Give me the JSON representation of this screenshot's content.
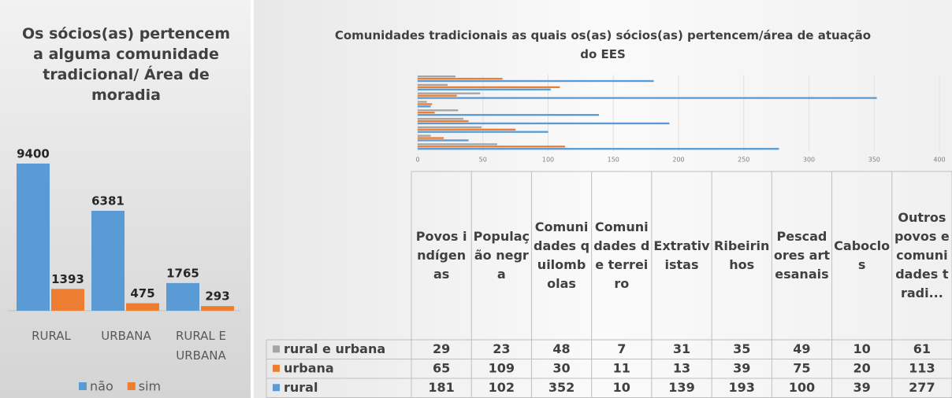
{
  "chart_data": [
    {
      "type": "bar",
      "title": "Os sócios(as) pertencem a alguma comunidade tradicional/ Área de moradia",
      "categories": [
        "RURAL",
        "URBANA",
        "RURAL E URBANA"
      ],
      "series": [
        {
          "name": "não",
          "color": "#5b9bd5",
          "values": [
            9400,
            6381,
            1765
          ]
        },
        {
          "name": "sim",
          "color": "#ed7d31",
          "values": [
            1393,
            475,
            293
          ]
        }
      ],
      "ylim": [
        0,
        10000
      ],
      "legend": "bottom"
    },
    {
      "type": "hbar-table",
      "title": "Comunidades tradicionais as quais os(as) sócios(as) pertencem/área de atuação do EES",
      "categories": [
        "Povos indígenas",
        "População negra",
        "Comunidades quilombolas",
        "Comunidades de terreiro",
        "Extrativistas",
        "Ribeirinhos",
        "Pescadores artesanais",
        "Caboclos",
        "Outros povos e comunidades tradi..."
      ],
      "series": [
        {
          "name": "rural e urbana",
          "color": "#a5a5a5",
          "values": [
            29,
            23,
            48,
            7,
            31,
            35,
            49,
            10,
            61
          ]
        },
        {
          "name": "urbana",
          "color": "#ed7d31",
          "values": [
            65,
            109,
            30,
            11,
            13,
            39,
            75,
            20,
            113
          ]
        },
        {
          "name": "rural",
          "color": "#5b9bd5",
          "values": [
            181,
            102,
            352,
            10,
            139,
            193,
            100,
            39,
            277
          ]
        }
      ],
      "xlim": [
        0,
        400
      ],
      "xticks": [
        0,
        50,
        100,
        150,
        200,
        250,
        300,
        350,
        400
      ],
      "grid": true
    }
  ]
}
